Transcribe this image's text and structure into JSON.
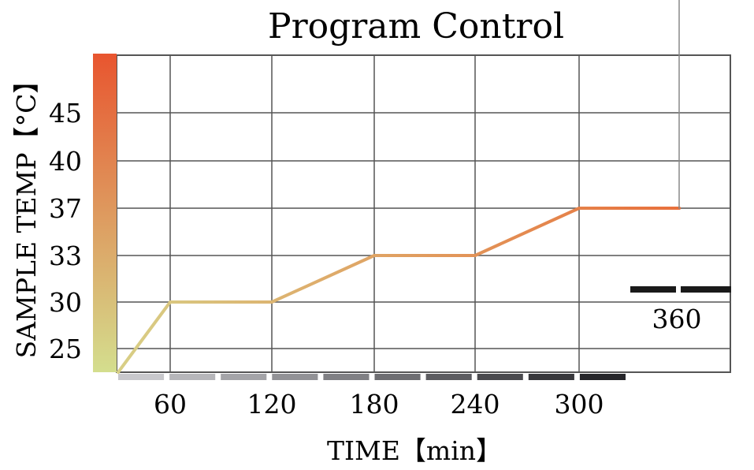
{
  "chart_data": {
    "type": "line",
    "title": "Program Control",
    "xlabel": "TIME【min】",
    "ylabel": "SAMPLE TEMP【°C】",
    "x_ticks": [
      "60",
      "120",
      "180",
      "240",
      "300"
    ],
    "x_end_label": "360",
    "y_ticks": [
      "25",
      "30",
      "33",
      "37",
      "40",
      "45"
    ],
    "xlim": [
      0,
      360
    ],
    "grid": true,
    "series": [
      {
        "x": [
          0,
          60,
          120,
          180,
          240,
          300,
          360
        ],
        "y": [
          22,
          30,
          30,
          33,
          33,
          37,
          37
        ]
      }
    ],
    "colors": {
      "line_start": "#d8cf86",
      "line_end": "#e8703c",
      "ybar_top": "#e8552f",
      "ybar_bottom": "#d4de8e",
      "grid": "#555555"
    }
  }
}
